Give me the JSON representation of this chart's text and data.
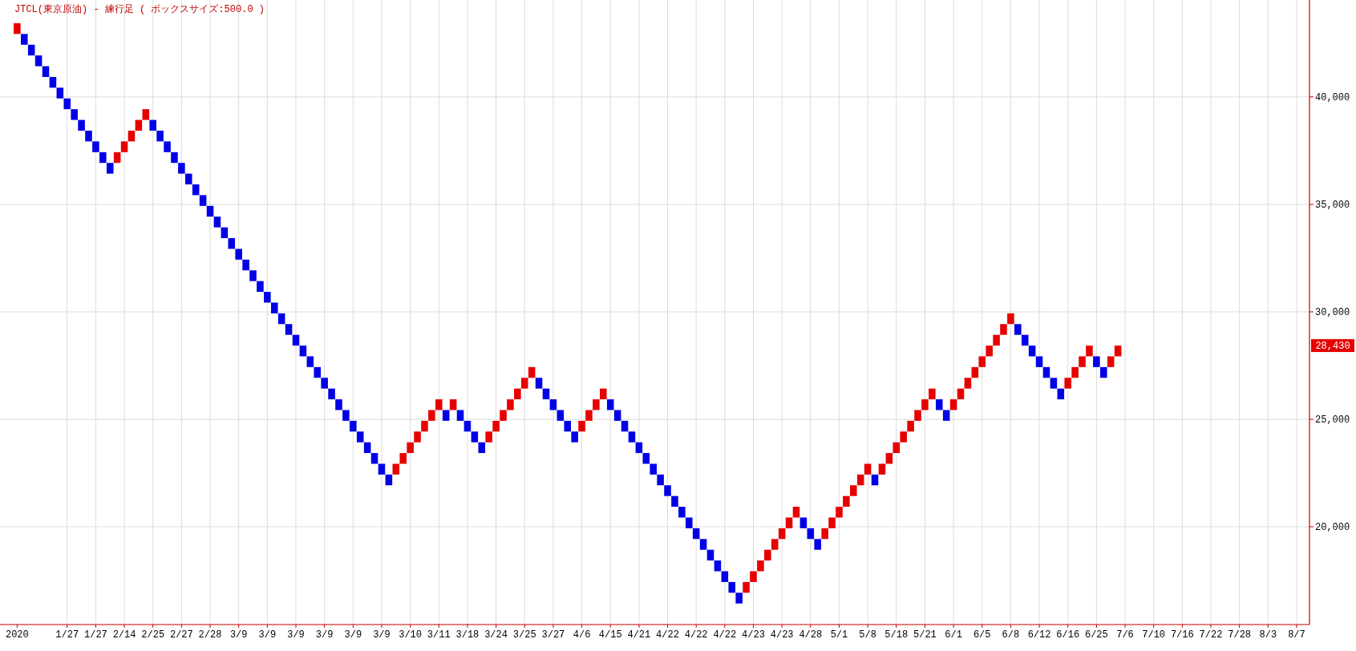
{
  "chart_data": {
    "type": "bar",
    "title": "JTCL(東京原油) - 練行足 ( ボックスサイズ:500.0 )",
    "categories": [
      "2020",
      null,
      null,
      null,
      null,
      null,
      null,
      "1/27",
      null,
      null,
      null,
      "1/27",
      null,
      null,
      null,
      "2/14",
      null,
      null,
      null,
      "2/25",
      null,
      null,
      null,
      "2/27",
      null,
      null,
      null,
      "2/28",
      null,
      null,
      null,
      "3/9",
      null,
      null,
      null,
      "3/9",
      null,
      null,
      null,
      "3/9",
      null,
      null,
      null,
      "3/9",
      null,
      null,
      null,
      "3/9",
      null,
      null,
      null,
      "3/9",
      null,
      null,
      null,
      "3/10",
      null,
      null,
      null,
      "3/11",
      null,
      null,
      null,
      "3/18",
      null,
      null,
      null,
      "3/24",
      null,
      null,
      null,
      "3/25",
      null,
      null,
      null,
      "3/27",
      null,
      null,
      null,
      "4/6",
      null,
      null,
      null,
      "4/15",
      null,
      null,
      null,
      "4/21",
      null,
      null,
      null,
      "4/22",
      null,
      null,
      null,
      "4/22",
      null,
      null,
      null,
      "4/22",
      null,
      null,
      null,
      "4/23",
      null,
      null,
      null,
      "4/23",
      null,
      null,
      null,
      "4/28",
      null,
      null,
      null,
      "5/1",
      null,
      null,
      null,
      "5/8",
      null,
      null,
      null,
      "5/18",
      null,
      null,
      null,
      "5/21",
      null,
      null,
      null,
      "6/1",
      null,
      null,
      null,
      "6/5",
      null,
      null,
      null,
      "6/8",
      null,
      null,
      null,
      "6/12",
      null,
      null,
      null,
      "6/16",
      null,
      null,
      null,
      "6/25",
      null,
      null,
      null,
      "7/6",
      null,
      null,
      null,
      "7/10",
      null,
      null,
      null,
      "7/16",
      null,
      null,
      null,
      "7/22",
      null,
      null,
      null,
      "7/28",
      null,
      null,
      null,
      "8/3",
      null,
      null,
      null,
      "8/7",
      null
    ],
    "values": [
      500,
      500,
      500,
      500,
      500,
      500,
      500,
      500,
      500,
      500,
      500,
      500,
      500,
      500,
      500,
      500,
      500,
      500,
      500,
      500,
      500,
      500,
      500,
      500,
      500,
      500,
      500,
      500,
      500,
      500,
      500,
      500,
      500,
      500,
      500,
      500,
      500,
      500,
      500,
      500,
      500,
      500,
      500,
      500,
      500,
      500,
      500,
      500,
      500,
      500,
      500,
      500,
      500,
      500,
      500,
      500,
      500,
      500,
      500,
      500,
      500,
      500,
      500,
      500,
      500,
      500,
      500,
      500,
      500,
      500,
      500,
      500,
      500,
      500,
      500,
      500,
      500,
      500,
      500,
      500,
      500,
      500,
      500,
      500,
      500,
      500,
      500,
      500,
      500,
      500,
      500,
      500,
      500,
      500,
      500,
      500,
      500,
      500,
      500,
      500,
      500,
      500,
      500,
      500,
      500,
      500,
      500,
      500,
      500,
      500,
      500,
      500,
      500,
      500,
      500,
      500,
      500,
      500,
      500,
      500,
      500,
      500,
      500,
      500,
      500,
      500,
      500,
      500,
      500,
      500,
      500,
      500,
      500,
      500,
      500,
      500,
      500,
      500,
      500,
      500,
      500,
      500,
      500,
      500,
      500,
      500,
      500,
      500,
      500,
      500,
      500,
      500,
      500,
      500,
      500,
      null,
      null,
      null,
      null,
      null,
      null,
      null,
      null,
      null,
      null,
      null,
      null,
      null,
      null,
      null,
      null,
      null,
      null,
      null,
      null,
      null,
      null,
      null,
      null,
      null,
      null
    ],
    "base": [
      42930,
      42430,
      41930,
      41430,
      40930,
      40430,
      39930,
      39430,
      38930,
      38430,
      37930,
      37430,
      36930,
      36430,
      36930,
      37430,
      37930,
      38430,
      38930,
      38430,
      37930,
      37430,
      36930,
      36430,
      35930,
      35430,
      34930,
      34430,
      33930,
      33430,
      32930,
      32430,
      31930,
      31430,
      30930,
      30430,
      29930,
      29430,
      28930,
      28430,
      27930,
      27430,
      26930,
      26430,
      25930,
      25430,
      24930,
      24430,
      23930,
      23430,
      22930,
      22430,
      21930,
      22430,
      22930,
      23430,
      23930,
      24430,
      24930,
      25430,
      24930,
      25430,
      24930,
      24430,
      23930,
      23430,
      23930,
      24430,
      24930,
      25430,
      25930,
      26430,
      26930,
      26430,
      25930,
      25430,
      24930,
      24430,
      23930,
      24430,
      24930,
      25430,
      25930,
      25430,
      24930,
      24430,
      23930,
      23430,
      22930,
      22430,
      21930,
      21430,
      20930,
      20430,
      19930,
      19430,
      18930,
      18430,
      17930,
      17430,
      16930,
      16430,
      16930,
      17430,
      17930,
      18430,
      18930,
      19430,
      19930,
      20430,
      19930,
      19430,
      18930,
      19430,
      19930,
      20430,
      20930,
      21430,
      21930,
      22430,
      21930,
      22430,
      22930,
      23430,
      23930,
      24430,
      24930,
      25430,
      25930,
      25430,
      24930,
      25430,
      25930,
      26430,
      26930,
      27430,
      27930,
      28430,
      28930,
      29430,
      28930,
      28430,
      27930,
      27430,
      26930,
      26430,
      25930,
      26430,
      26930,
      27430,
      27930,
      27430,
      26930,
      27430,
      27930,
      null,
      null,
      null,
      null,
      null,
      null,
      null,
      null,
      null,
      null,
      null,
      null,
      null,
      null,
      null,
      null,
      null,
      null,
      null,
      null,
      null,
      null,
      null,
      null,
      null,
      null
    ],
    "colors": [
      "#e60000",
      "#0000e6",
      "#0000e6",
      "#0000e6",
      "#0000e6",
      "#0000e6",
      "#0000e6",
      "#0000e6",
      "#0000e6",
      "#0000e6",
      "#0000e6",
      "#0000e6",
      "#0000e6",
      "#0000e6",
      "#e60000",
      "#e60000",
      "#e60000",
      "#e60000",
      "#e60000",
      "#0000e6",
      "#0000e6",
      "#0000e6",
      "#0000e6",
      "#0000e6",
      "#0000e6",
      "#0000e6",
      "#0000e6",
      "#0000e6",
      "#0000e6",
      "#0000e6",
      "#0000e6",
      "#0000e6",
      "#0000e6",
      "#0000e6",
      "#0000e6",
      "#0000e6",
      "#0000e6",
      "#0000e6",
      "#0000e6",
      "#0000e6",
      "#0000e6",
      "#0000e6",
      "#0000e6",
      "#0000e6",
      "#0000e6",
      "#0000e6",
      "#0000e6",
      "#0000e6",
      "#0000e6",
      "#0000e6",
      "#0000e6",
      "#0000e6",
      "#0000e6",
      "#e60000",
      "#e60000",
      "#e60000",
      "#e60000",
      "#e60000",
      "#e60000",
      "#e60000",
      "#0000e6",
      "#e60000",
      "#0000e6",
      "#0000e6",
      "#0000e6",
      "#0000e6",
      "#e60000",
      "#e60000",
      "#e60000",
      "#e60000",
      "#e60000",
      "#e60000",
      "#e60000",
      "#0000e6",
      "#0000e6",
      "#0000e6",
      "#0000e6",
      "#0000e6",
      "#0000e6",
      "#e60000",
      "#e60000",
      "#e60000",
      "#e60000",
      "#0000e6",
      "#0000e6",
      "#0000e6",
      "#0000e6",
      "#0000e6",
      "#0000e6",
      "#0000e6",
      "#0000e6",
      "#0000e6",
      "#0000e6",
      "#0000e6",
      "#0000e6",
      "#0000e6",
      "#0000e6",
      "#0000e6",
      "#0000e6",
      "#0000e6",
      "#0000e6",
      "#0000e6",
      "#e60000",
      "#e60000",
      "#e60000",
      "#e60000",
      "#e60000",
      "#e60000",
      "#e60000",
      "#e60000",
      "#0000e6",
      "#0000e6",
      "#0000e6",
      "#e60000",
      "#e60000",
      "#e60000",
      "#e60000",
      "#e60000",
      "#e60000",
      "#e60000",
      "#0000e6",
      "#e60000",
      "#e60000",
      "#e60000",
      "#e60000",
      "#e60000",
      "#e60000",
      "#e60000",
      "#e60000",
      "#0000e6",
      "#0000e6",
      "#e60000",
      "#e60000",
      "#e60000",
      "#e60000",
      "#e60000",
      "#e60000",
      "#e60000",
      "#e60000",
      "#e60000",
      "#0000e6",
      "#0000e6",
      "#0000e6",
      "#0000e6",
      "#0000e6",
      "#0000e6",
      "#0000e6",
      "#e60000",
      "#e60000",
      "#e60000",
      "#e60000",
      "#0000e6",
      "#0000e6",
      "#e60000",
      "#e60000",
      null,
      null,
      null,
      null,
      null,
      null,
      null,
      null,
      null,
      null,
      null,
      null,
      null,
      null,
      null,
      null,
      null,
      null,
      null,
      null,
      null,
      null,
      null,
      null,
      null,
      null
    ],
    "ylim": [
      15450,
      44510
    ],
    "yticks": [
      {
        "value": 20000,
        "label": "20,000"
      },
      {
        "value": 25000,
        "label": "25,000"
      },
      {
        "value": 30000,
        "label": "30,000"
      },
      {
        "value": 35000,
        "label": "35,000"
      },
      {
        "value": 40000,
        "label": "40,000"
      }
    ],
    "grid": true,
    "annotations": [
      "28,430"
    ]
  }
}
